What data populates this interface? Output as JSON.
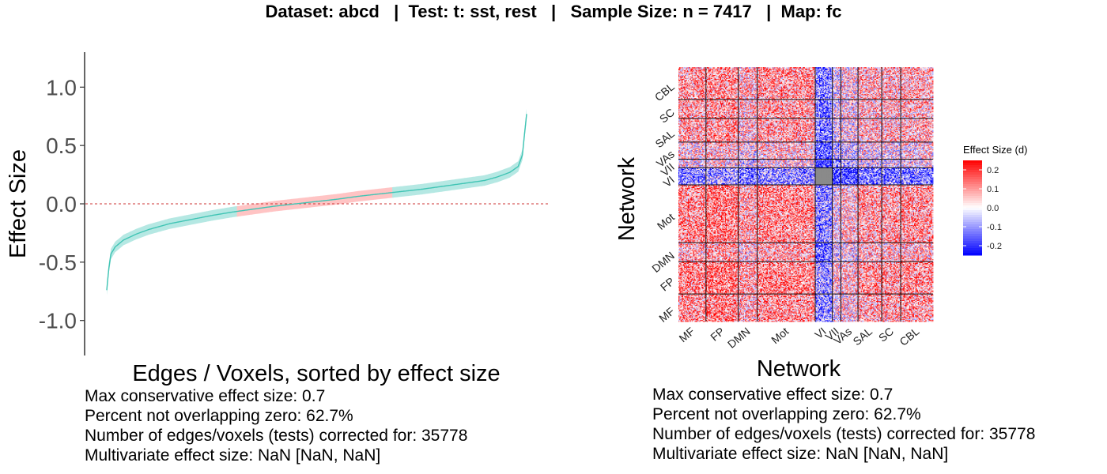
{
  "title": "Dataset: abcd   |  Test: t: sst, rest   |   Sample Size: n = 7417   |  Map: fc",
  "chart_data": [
    {
      "type": "line",
      "name": "sorted-effect-sizes",
      "xlabel": "Edges / Voxels, sorted by effect size",
      "ylabel": "Effect Size",
      "ylim": [
        -1.3,
        1.3
      ],
      "yticks": [
        -1.0,
        -0.5,
        0.0,
        0.5,
        1.0
      ],
      "ytick_labels": [
        "-1.0",
        "-0.5",
        "0.0",
        "0.5",
        "1.0"
      ],
      "reference_line": 0.0,
      "x_fraction": [
        0.0,
        0.005,
        0.01,
        0.02,
        0.04,
        0.07,
        0.1,
        0.15,
        0.2,
        0.25,
        0.3,
        0.35,
        0.4,
        0.45,
        0.5,
        0.55,
        0.6,
        0.65,
        0.7,
        0.75,
        0.8,
        0.85,
        0.9,
        0.93,
        0.96,
        0.98,
        0.99,
        1.0
      ],
      "y": [
        -0.74,
        -0.55,
        -0.43,
        -0.37,
        -0.31,
        -0.26,
        -0.22,
        -0.17,
        -0.135,
        -0.1,
        -0.07,
        -0.045,
        -0.02,
        0.0,
        0.02,
        0.04,
        0.065,
        0.085,
        0.105,
        0.125,
        0.15,
        0.175,
        0.2,
        0.23,
        0.27,
        0.32,
        0.42,
        0.77
      ],
      "ci_halfwidth": 0.045,
      "overlap_zero_range": [
        0.31,
        0.68
      ],
      "colors": {
        "line": "#40c4b4",
        "band": "#b5e8e3",
        "band_overlap": "#ffc4c4",
        "refline": "#cc3333"
      }
    },
    {
      "type": "heatmap",
      "name": "network-matrix",
      "xlabel": "Network",
      "ylabel": "Network",
      "x_networks": [
        "MF",
        "FP",
        "DMN",
        "Mot",
        "VI",
        "VII",
        "VAs",
        "SAL",
        "SC",
        "CBL"
      ],
      "y_networks": [
        "MF",
        "FP",
        "DMN",
        "Mot",
        "VI",
        "VII",
        "VAs",
        "SAL",
        "SC",
        "CBL"
      ],
      "network_sizes": [
        29,
        34,
        20,
        61,
        18,
        9,
        18,
        25,
        20,
        34
      ],
      "legend_title": "Effect Size (d)",
      "legend_ticks": [
        0.2,
        0.1,
        0.0,
        -0.1,
        -0.2
      ],
      "legend_tick_labels": [
        "0.2",
        "0.1",
        "0.0",
        "-0.1",
        "-0.2"
      ],
      "color_range": [
        -0.25,
        0.25
      ],
      "colors": {
        "low": "#0000ff",
        "mid": "#ffffff",
        "high": "#ff0000",
        "masked": "#8a8a8a"
      }
    }
  ],
  "stats": {
    "left": {
      "max_effect": "Max conservative effect size: 0.7",
      "percent_nonzero": "Percent not overlapping zero: 62.7%",
      "num_tests": "Number of edges/voxels (tests) corrected for: 35778",
      "multivariate": "Multivariate effect size: NaN [NaN, NaN]"
    },
    "right": {
      "max_effect": "Max conservative effect size: 0.7",
      "percent_nonzero": "Percent not overlapping zero: 62.7%",
      "num_tests": "Number of edges/voxels (tests) corrected for: 35778",
      "multivariate": "Multivariate effect size: NaN [NaN, NaN]"
    }
  }
}
